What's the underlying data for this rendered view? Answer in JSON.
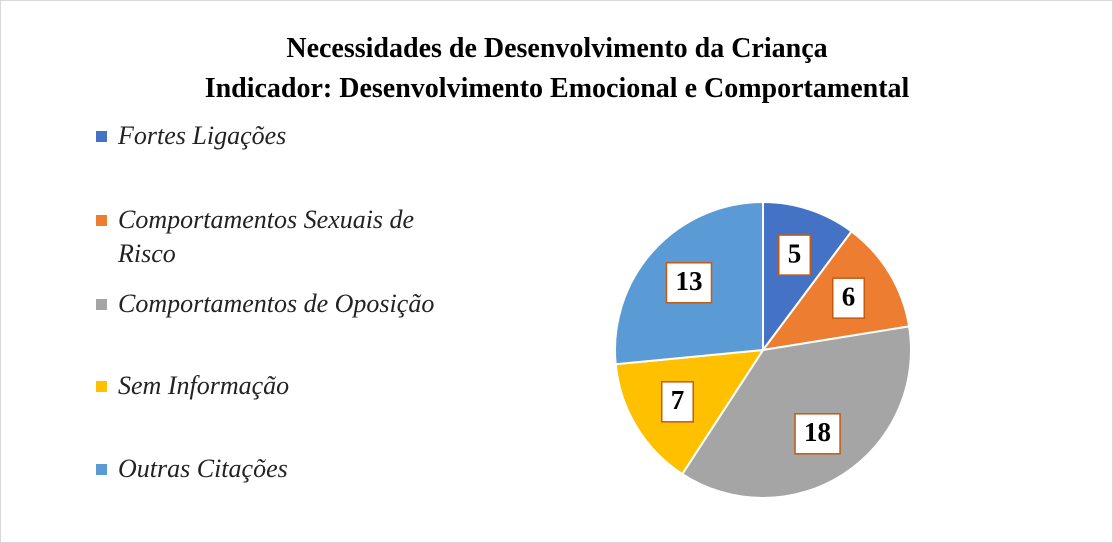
{
  "chart_data": {
    "type": "pie",
    "title": [
      "Necessidades de Desenvolvimento da Criança",
      "Indicador: Desenvolvimento Emocional e Comportamental"
    ],
    "categories": [
      "Fortes Ligações",
      "Comportamentos Sexuais de Risco",
      "Comportamentos de Oposição",
      "Sem Informação",
      "Outras Citações"
    ],
    "values": [
      5,
      6,
      18,
      7,
      13
    ],
    "colors": [
      "#4472c4",
      "#ed7d31",
      "#a5a5a5",
      "#ffc000",
      "#5b9bd5"
    ],
    "legend": "left"
  }
}
